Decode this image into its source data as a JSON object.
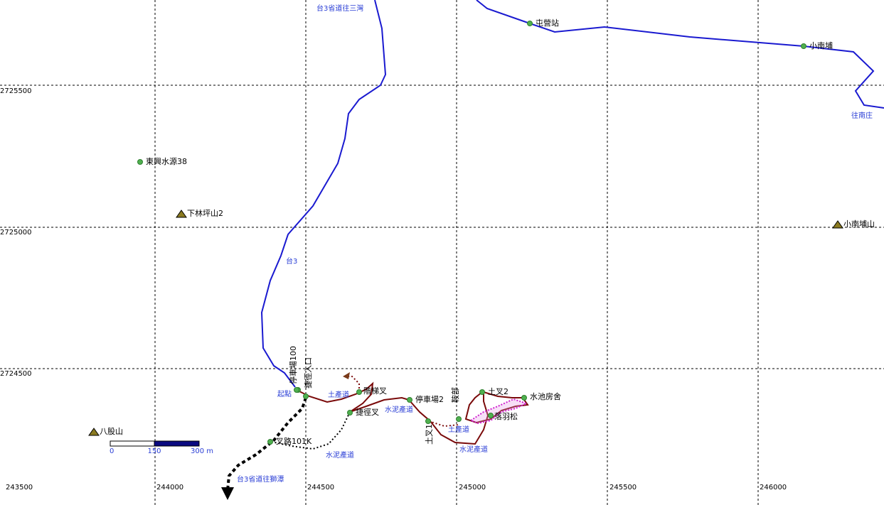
{
  "map": {
    "grid": {
      "x_labels": [
        243500,
        244000,
        244500,
        245000,
        245500,
        246000
      ],
      "y_labels": [
        2725500,
        2725000,
        2724500
      ]
    },
    "roads": [
      "台3省道往三灣",
      "往南庄",
      "台3",
      "台3省道往獅潭",
      "土產道",
      "水泥產道",
      "水泥產道",
      "土產道",
      "水泥產道"
    ],
    "waypoints": [
      "屯營站",
      "小南埔",
      "東興水源38",
      "起點",
      "停車場100",
      "捷徑入口",
      "階梯叉",
      "捷徑叉",
      "停車場2",
      "叉路101K",
      "土叉1",
      "鞍部",
      "土叉2",
      "水池房舍",
      "落羽松"
    ],
    "peaks": [
      "下林坪山2",
      "小南埔山",
      "八股山"
    ],
    "scale": {
      "labels": [
        "0",
        "150",
        "300 m"
      ]
    }
  }
}
